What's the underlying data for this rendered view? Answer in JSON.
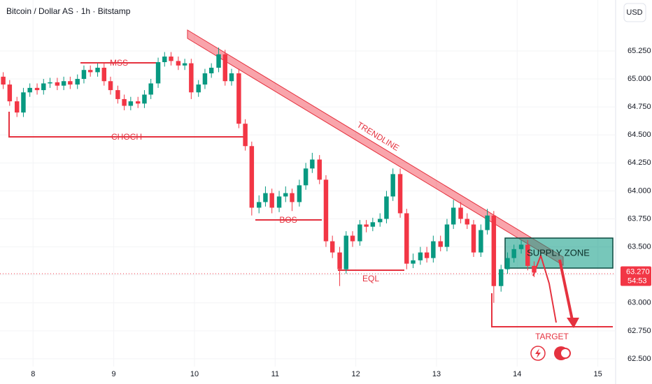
{
  "chart_data": {
    "type": "candlestick",
    "title": "Bitcoin / Dollar AS · 1h · Bitstamp",
    "currency": "USD",
    "x": [
      7.63,
      7.71,
      7.8,
      7.88,
      7.96,
      8.05,
      8.13,
      8.21,
      8.3,
      8.38,
      8.46,
      8.55,
      8.63,
      8.71,
      8.8,
      8.88,
      8.96,
      9.05,
      9.13,
      9.21,
      9.3,
      9.38,
      9.46,
      9.55,
      9.63,
      9.71,
      9.8,
      9.88,
      9.96,
      10.05,
      10.13,
      10.21,
      10.3,
      10.38,
      10.46,
      10.55,
      10.63,
      10.71,
      10.8,
      10.88,
      10.96,
      11.05,
      11.13,
      11.21,
      11.3,
      11.38,
      11.46,
      11.55,
      11.63,
      11.71,
      11.8,
      11.88,
      11.96,
      12.05,
      12.13,
      12.21,
      12.3,
      12.38,
      12.46,
      12.55,
      12.63,
      12.71,
      12.8,
      12.88,
      12.96,
      13.05,
      13.13,
      13.21,
      13.3,
      13.38,
      13.46,
      13.55,
      13.63,
      13.71,
      13.8,
      13.88,
      13.96,
      14.05,
      14.13,
      14.21
    ],
    "open": [
      65.02,
      64.95,
      64.8,
      64.7,
      64.88,
      64.92,
      64.9,
      64.96,
      64.97,
      64.94,
      64.98,
      64.95,
      65.0,
      65.08,
      65.06,
      65.1,
      64.98,
      64.9,
      64.82,
      64.76,
      64.8,
      64.78,
      64.86,
      64.96,
      65.15,
      65.2,
      65.16,
      65.12,
      65.14,
      64.88,
      64.95,
      65.05,
      65.1,
      65.22,
      64.98,
      65.05,
      64.6,
      64.4,
      63.85,
      63.9,
      63.98,
      63.85,
      63.95,
      63.98,
      63.9,
      64.05,
      64.2,
      64.28,
      64.1,
      63.55,
      63.45,
      63.3,
      63.6,
      63.55,
      63.7,
      63.68,
      63.72,
      63.75,
      63.95,
      64.15,
      63.8,
      63.35,
      63.38,
      63.45,
      63.4,
      63.55,
      63.5,
      63.7,
      63.85,
      63.75,
      63.7,
      63.45,
      63.65,
      63.78,
      63.15,
      63.3,
      63.4,
      63.48,
      63.52,
      63.33
    ],
    "high": [
      65.06,
      64.99,
      64.84,
      64.92,
      64.96,
      64.96,
      65.0,
      65.01,
      65.01,
      65.02,
      65.02,
      65.04,
      65.12,
      65.12,
      65.14,
      65.14,
      65.02,
      64.94,
      64.86,
      64.84,
      64.84,
      64.9,
      65.0,
      65.19,
      65.24,
      65.24,
      65.2,
      65.18,
      65.18,
      64.99,
      65.09,
      65.14,
      65.28,
      65.26,
      65.09,
      65.09,
      64.64,
      64.44,
      63.96,
      64.04,
      64.02,
      64.0,
      64.04,
      64.02,
      64.1,
      64.25,
      64.34,
      64.32,
      64.14,
      63.6,
      63.5,
      63.64,
      63.64,
      63.74,
      63.74,
      63.76,
      63.8,
      64.0,
      64.2,
      64.2,
      63.84,
      63.44,
      63.5,
      63.5,
      63.6,
      63.6,
      63.75,
      63.92,
      63.9,
      63.8,
      63.74,
      63.7,
      63.84,
      63.82,
      63.34,
      63.45,
      63.52,
      63.56,
      63.56,
      63.37
    ],
    "low": [
      64.91,
      64.76,
      64.66,
      64.66,
      64.84,
      64.86,
      64.86,
      64.92,
      64.9,
      64.9,
      64.91,
      64.91,
      64.96,
      65.02,
      65.02,
      64.94,
      64.86,
      64.78,
      64.72,
      64.72,
      64.74,
      64.74,
      64.82,
      64.92,
      65.11,
      65.12,
      65.08,
      65.08,
      64.82,
      64.84,
      64.91,
      65.01,
      65.06,
      64.94,
      64.94,
      64.56,
      64.36,
      63.78,
      63.8,
      63.86,
      63.8,
      63.81,
      63.9,
      63.82,
      63.86,
      64.01,
      64.16,
      64.06,
      63.5,
      63.4,
      63.15,
      63.26,
      63.5,
      63.51,
      63.63,
      63.64,
      63.68,
      63.71,
      63.91,
      63.76,
      63.3,
      63.31,
      63.34,
      63.36,
      63.36,
      63.46,
      63.46,
      63.66,
      63.71,
      63.66,
      63.41,
      63.41,
      63.61,
      63.0,
      63.1,
      63.26,
      63.36,
      63.44,
      63.29,
      63.23
    ],
    "close": [
      64.95,
      64.8,
      64.7,
      64.88,
      64.92,
      64.9,
      64.96,
      64.97,
      64.94,
      64.98,
      64.95,
      65.0,
      65.08,
      65.06,
      65.1,
      64.98,
      64.9,
      64.82,
      64.76,
      64.8,
      64.78,
      64.86,
      64.96,
      65.15,
      65.2,
      65.16,
      65.12,
      65.14,
      64.88,
      64.95,
      65.05,
      65.1,
      65.22,
      64.98,
      65.05,
      64.6,
      64.4,
      63.85,
      63.9,
      63.98,
      63.85,
      63.95,
      63.98,
      63.9,
      64.05,
      64.2,
      64.28,
      64.1,
      63.55,
      63.45,
      63.3,
      63.6,
      63.55,
      63.7,
      63.68,
      63.72,
      63.75,
      63.95,
      64.15,
      63.8,
      63.35,
      63.38,
      63.45,
      63.4,
      63.55,
      63.5,
      63.7,
      63.85,
      63.75,
      63.7,
      63.45,
      63.65,
      63.78,
      63.15,
      63.3,
      63.4,
      63.48,
      63.52,
      63.33,
      63.27
    ],
    "up_color": "#089981",
    "down_color": "#f23645",
    "xlim": [
      7.59,
      15.22
    ],
    "ylim": [
      62.431,
      65.705
    ],
    "xticks": [
      8,
      9,
      10,
      11,
      12,
      13,
      14,
      15
    ],
    "yticks": [
      {
        "value": 62.5,
        "label": "62.500"
      },
      {
        "value": 62.75,
        "label": "62.750"
      },
      {
        "value": 63,
        "label": "63.000"
      },
      {
        "value": 63.25,
        "label": "63.250"
      },
      {
        "value": 63.5,
        "label": "63.500"
      },
      {
        "value": 63.75,
        "label": "63.750"
      },
      {
        "value": 64,
        "label": "64.000"
      },
      {
        "value": 64.25,
        "label": "64.250"
      },
      {
        "value": 64.5,
        "label": "64.500"
      },
      {
        "value": 64.75,
        "label": "64.750"
      },
      {
        "value": 65,
        "label": "65.000"
      },
      {
        "value": 65.25,
        "label": "65.250"
      }
    ],
    "grid": true,
    "last_price": {
      "value": 63.27,
      "label": "63.270"
    },
    "countdown": "54:53",
    "annotations": [
      "MSS",
      "CHOCH",
      "BOS",
      "TRENDLINE",
      "EQL",
      "SUPPLY ZONE",
      "TARGET"
    ]
  }
}
